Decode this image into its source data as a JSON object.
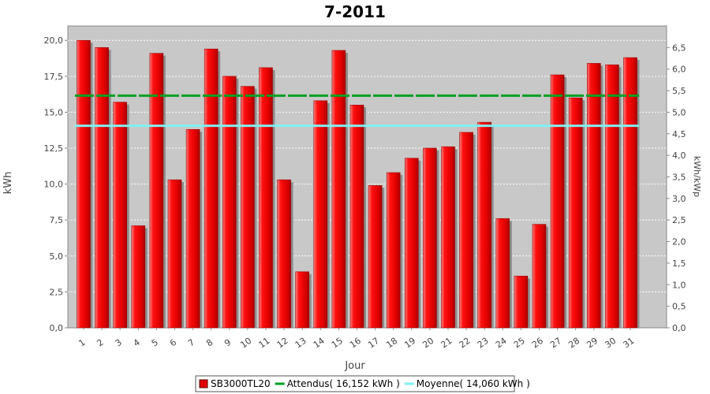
{
  "chart_data": {
    "type": "bar",
    "title": "7-2011",
    "xlabel": "Jour",
    "ylabel": "kWh",
    "ylabel_right": "kWh/kWp",
    "ylim": [
      0,
      21
    ],
    "ylim_right": [
      0,
      7.0
    ],
    "y_ticks": [
      "0,0",
      "2,5",
      "5,0",
      "7,5",
      "10,0",
      "12,5",
      "15,0",
      "17,5",
      "20,0"
    ],
    "y_ticks_right": [
      "0,0",
      "0,5",
      "1,0",
      "1,5",
      "2,0",
      "2,5",
      "3,0",
      "3,5",
      "4,0",
      "4,5",
      "5,0",
      "5,5",
      "6,0",
      "6,5"
    ],
    "categories": [
      "1",
      "2",
      "3",
      "4",
      "5",
      "6",
      "7",
      "8",
      "9",
      "10",
      "11",
      "12",
      "13",
      "14",
      "15",
      "16",
      "17",
      "18",
      "19",
      "20",
      "21",
      "22",
      "23",
      "24",
      "25",
      "26",
      "27",
      "28",
      "29",
      "30",
      "31"
    ],
    "series": [
      {
        "name": "SB3000TL20",
        "color": "#e00000",
        "values": [
          20.0,
          19.5,
          15.7,
          7.1,
          19.1,
          10.3,
          13.8,
          19.4,
          17.5,
          16.8,
          18.1,
          10.3,
          3.9,
          15.8,
          19.3,
          15.5,
          9.9,
          10.8,
          11.8,
          12.5,
          12.6,
          13.6,
          14.3,
          7.6,
          3.6,
          7.2,
          17.6,
          16.0,
          18.4,
          18.3,
          18.8
        ]
      }
    ],
    "reference_lines": [
      {
        "name": "Attendus( 16,152 kWh )",
        "value": 16.152,
        "color": "#00a020"
      },
      {
        "name": "Moyenne( 14,060 kWh )",
        "value": 14.06,
        "color": "#80f0f0"
      }
    ],
    "legend_position": "bottom",
    "grid": true
  }
}
